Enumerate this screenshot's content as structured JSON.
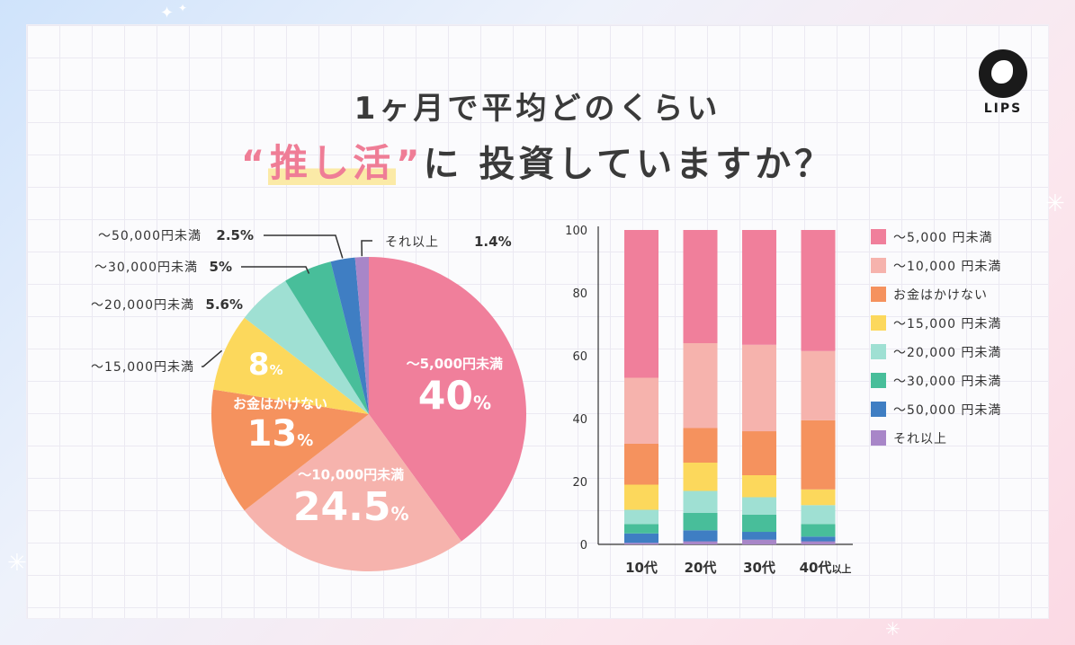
{
  "title": {
    "line1": "1ヶ月で平均どのくらい",
    "open_quote": "“",
    "highlight": "推し活",
    "close_quote": "”",
    "rest": "に 投資していますか？"
  },
  "logo": {
    "text": "LIPS",
    "icon": "fawn-logo-icon"
  },
  "colors": {
    "under5000": "#f07f9b",
    "under10000": "#f6b3ad",
    "none": "#f5925e",
    "under15000": "#fcd85c",
    "under20000": "#9fe0d3",
    "under30000": "#48be9a",
    "under50000": "#3f7ec3",
    "more": "#a886c8"
  },
  "chart_data": [
    {
      "type": "pie",
      "slices": [
        {
          "key": "under5000",
          "label": "〜5,000円未満",
          "value": 40,
          "value_text": "40",
          "pct": "%"
        },
        {
          "key": "under10000",
          "label": "〜10,000円未満",
          "value": 24.5,
          "value_text": "24.5",
          "pct": "%"
        },
        {
          "key": "none",
          "label": "お金はかけない",
          "value": 13,
          "value_text": "13",
          "pct": "%"
        },
        {
          "key": "under15000",
          "label": "〜15,000円未満",
          "value": 8,
          "value_text": "8",
          "pct": "%"
        },
        {
          "key": "under20000",
          "label": "〜20,000円未満",
          "value": 5.6,
          "value_text": "5.6%"
        },
        {
          "key": "under30000",
          "label": "〜30,000円未満",
          "value": 5,
          "value_text": "5%"
        },
        {
          "key": "under50000",
          "label": "〜50,000円未満",
          "value": 2.5,
          "value_text": "2.5%"
        },
        {
          "key": "more",
          "label": "それ以上",
          "value": 1.4,
          "value_text": "1.4%"
        }
      ]
    },
    {
      "type": "bar",
      "stacked": true,
      "categories": [
        "10代",
        "20代",
        "30代",
        "40代"
      ],
      "category_suffix": [
        "",
        "",
        "",
        "以上"
      ],
      "ylim": [
        0,
        100
      ],
      "yticks": [
        "0",
        "20",
        "40",
        "60",
        "80",
        "100"
      ],
      "series": [
        {
          "key": "more",
          "name": "それ以上",
          "values": [
            0.5,
            1,
            1.5,
            1
          ]
        },
        {
          "key": "under50000",
          "name": "〜50,000 円未満",
          "values": [
            3,
            3.5,
            2.5,
            1.5
          ]
        },
        {
          "key": "under30000",
          "name": "〜30,000 円未満",
          "values": [
            3,
            5.5,
            5.5,
            4
          ]
        },
        {
          "key": "under20000",
          "name": "〜20,000 円未満",
          "values": [
            4.5,
            7,
            5.5,
            6
          ]
        },
        {
          "key": "under15000",
          "name": "〜15,000 円未満",
          "values": [
            8,
            9,
            7,
            5
          ]
        },
        {
          "key": "none",
          "name": "お金はかけない",
          "values": [
            13,
            11,
            14,
            22
          ]
        },
        {
          "key": "under10000",
          "name": "〜10,000 円未満",
          "values": [
            21,
            27,
            27.5,
            22
          ]
        },
        {
          "key": "under5000",
          "name": "〜5,000 円未満",
          "values": [
            47,
            36,
            36.5,
            38.5
          ]
        }
      ],
      "legend": [
        "under5000",
        "under10000",
        "none",
        "under15000",
        "under20000",
        "under30000",
        "under50000",
        "more"
      ],
      "legend_position": "right"
    }
  ]
}
